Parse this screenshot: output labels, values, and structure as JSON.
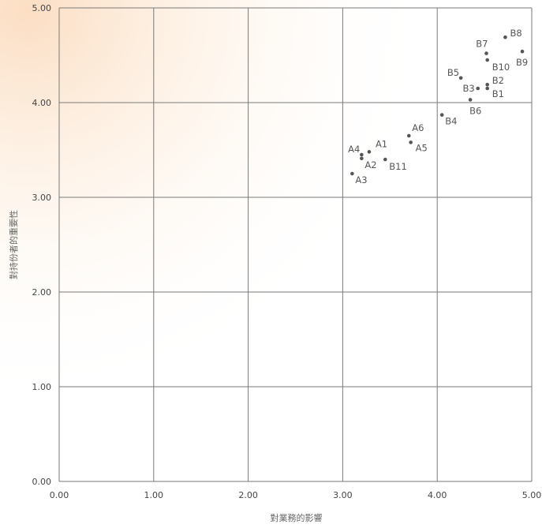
{
  "chart_data": {
    "type": "scatter",
    "title": "",
    "xlabel": "對業務的影響",
    "ylabel": "對持份者的重要性",
    "xlim": [
      0,
      5
    ],
    "ylim": [
      0,
      5
    ],
    "x_ticks": [
      "0.00",
      "1.00",
      "2.00",
      "3.00",
      "4.00",
      "5.00"
    ],
    "y_ticks": [
      "0.00",
      "1.00",
      "2.00",
      "3.00",
      "4.00",
      "5.00"
    ],
    "grid": true,
    "legend": "none",
    "point_color": "#555555",
    "points": [
      {
        "label": "A1",
        "x": 3.28,
        "y": 3.48
      },
      {
        "label": "A2",
        "x": 3.2,
        "y": 3.41
      },
      {
        "label": "A3",
        "x": 3.1,
        "y": 3.25
      },
      {
        "label": "A4",
        "x": 3.2,
        "y": 3.45
      },
      {
        "label": "A5",
        "x": 3.72,
        "y": 3.58
      },
      {
        "label": "A6",
        "x": 3.7,
        "y": 3.65
      },
      {
        "label": "B1",
        "x": 4.53,
        "y": 4.15
      },
      {
        "label": "B2",
        "x": 4.53,
        "y": 4.19
      },
      {
        "label": "B3",
        "x": 4.43,
        "y": 4.15
      },
      {
        "label": "B4",
        "x": 4.05,
        "y": 3.87
      },
      {
        "label": "B5",
        "x": 4.25,
        "y": 4.26
      },
      {
        "label": "B6",
        "x": 4.35,
        "y": 4.03
      },
      {
        "label": "B7",
        "x": 4.52,
        "y": 4.52
      },
      {
        "label": "B8",
        "x": 4.72,
        "y": 4.69
      },
      {
        "label": "B9",
        "x": 4.9,
        "y": 4.54
      },
      {
        "label": "B10",
        "x": 4.53,
        "y": 4.45
      },
      {
        "label": "B11",
        "x": 3.45,
        "y": 3.4
      }
    ]
  }
}
